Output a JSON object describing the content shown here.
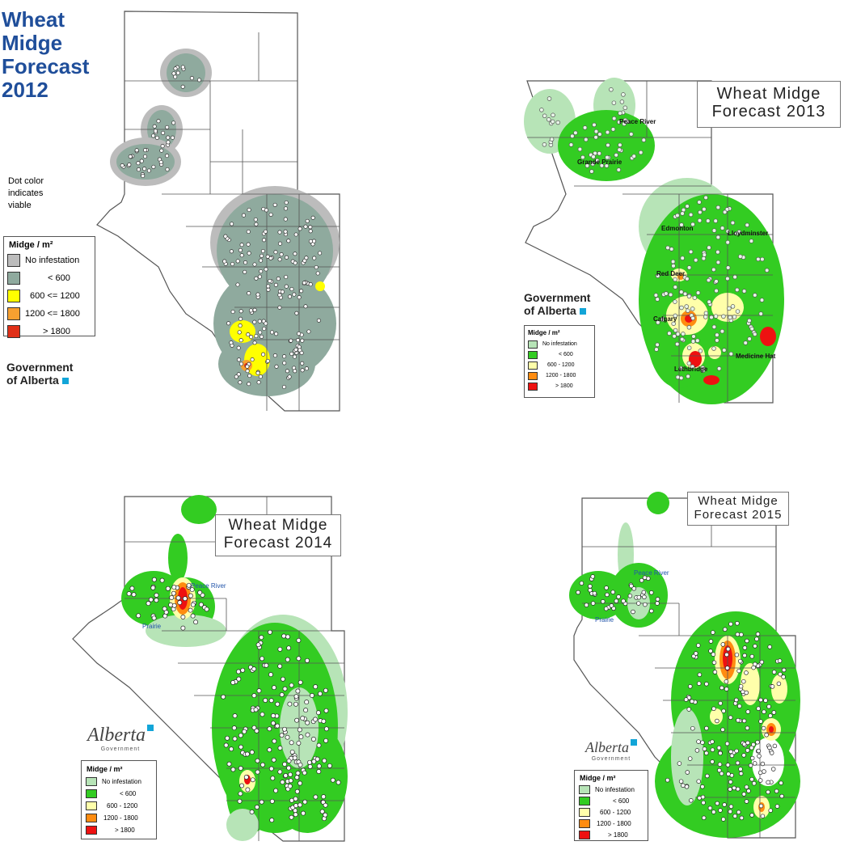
{
  "colors": {
    "no_infestation_2012": "#bcbcbc",
    "lt600_2012": "#8faa9e",
    "mid_2012": "#ffff00",
    "high_2012": "#f7a030",
    "max_2012": "#e03018",
    "no_infestation": "#b7e4b7",
    "lt600": "#33cc22",
    "mid": "#ffffaa",
    "high": "#ff8c10",
    "max": "#ee1111"
  },
  "p2012": {
    "title": "Wheat Midge Forecast 2012",
    "title_lines": [
      "Wheat",
      "Midge",
      "Forecast",
      "2012"
    ],
    "note_lines": [
      "Dot color",
      "indicates",
      "viable"
    ],
    "legend_title": "Midge / m²",
    "legend_items": [
      "No infestation",
      "<  600",
      "600 <= 1200",
      "1200 <= 1800",
      "> 1800"
    ],
    "gov_lines": [
      "Government",
      "of Alberta"
    ]
  },
  "p2013": {
    "title_lines": [
      "Wheat  Midge",
      "Forecast 2013"
    ],
    "legend_title": "Midge / m²",
    "legend_items": [
      "No infestation",
      "<  600",
      "600 - 1200",
      "1200 - 1800",
      "> 1800"
    ],
    "gov_lines": [
      "Government",
      "of Alberta"
    ],
    "cities": [
      "Peace River",
      "Grande Prairie",
      "Edmonton",
      "Lloydminster",
      "Red Deer",
      "Calgary",
      "Medicine Hat",
      "Lethbridge"
    ]
  },
  "p2014": {
    "title_lines": [
      "Wheat  Midge",
      "Forecast 2014"
    ],
    "legend_title": "Midge / m²",
    "legend_items": [
      "No infestation",
      "<  600",
      "600 - 1200",
      "1200 - 1800",
      "> 1800"
    ],
    "logo_word": "Alberta",
    "logo_sub": "Government",
    "cities": [
      "Peace River",
      "Prairie"
    ]
  },
  "p2015": {
    "title_lines": [
      "Wheat  Midge",
      "Forecast 2015"
    ],
    "legend_title": "Midge / m²",
    "legend_items": [
      "No infestation",
      "<  600",
      "600 - 1200",
      "1200 - 1800",
      "> 1800"
    ],
    "logo_word": "Alberta",
    "logo_sub": "Government",
    "cities": [
      "Peace River",
      "Prairie"
    ]
  }
}
